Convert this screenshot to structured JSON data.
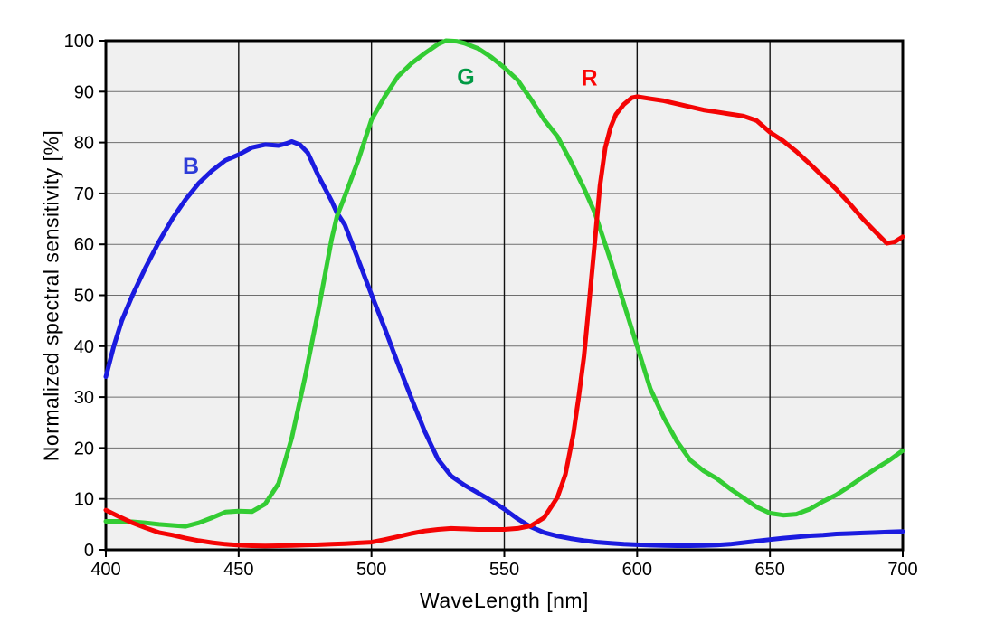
{
  "chart_data": {
    "type": "line",
    "title": "",
    "xlabel": "WaveLength [nm]",
    "ylabel": "Normalized spectral sensitivity [%]",
    "xlim": [
      400,
      700
    ],
    "ylim": [
      0,
      100
    ],
    "x_ticks": [
      400,
      450,
      500,
      550,
      600,
      650,
      700
    ],
    "y_ticks": [
      0,
      10,
      20,
      30,
      40,
      50,
      60,
      70,
      80,
      90,
      100
    ],
    "grid": true,
    "legend_position": "inline-labels",
    "style": {
      "plot_bg": "#f0f0f0",
      "grid_h_color": "#6e6e6e",
      "grid_v_color": "#111111",
      "border_color": "#000000",
      "tick_color": "#000000",
      "tick_label_size": 20,
      "curve_width": 5
    },
    "series": [
      {
        "name": "B",
        "color": "#1b1bdf",
        "label": {
          "text": "B",
          "x": 432,
          "y": 75.5,
          "color": "#2c3bd8"
        },
        "points": [
          [
            400,
            34
          ],
          [
            403,
            40
          ],
          [
            406,
            45
          ],
          [
            410,
            50
          ],
          [
            415,
            55.5
          ],
          [
            420,
            60.5
          ],
          [
            425,
            65
          ],
          [
            430,
            68.8
          ],
          [
            435,
            72
          ],
          [
            440,
            74.5
          ],
          [
            445,
            76.5
          ],
          [
            450,
            77.6
          ],
          [
            455,
            79
          ],
          [
            460,
            79.6
          ],
          [
            465,
            79.4
          ],
          [
            468,
            79.8
          ],
          [
            470,
            80.2
          ],
          [
            473,
            79.6
          ],
          [
            476,
            78
          ],
          [
            480,
            73.5
          ],
          [
            485,
            68.5
          ],
          [
            487,
            66.2
          ],
          [
            490,
            63.8
          ],
          [
            495,
            57
          ],
          [
            500,
            50.1
          ],
          [
            505,
            43.5
          ],
          [
            510,
            36.5
          ],
          [
            515,
            29.8
          ],
          [
            520,
            23.3
          ],
          [
            525,
            17.8
          ],
          [
            530,
            14.5
          ],
          [
            535,
            12.7
          ],
          [
            540,
            11.2
          ],
          [
            545,
            9.7
          ],
          [
            550,
            8
          ],
          [
            555,
            6.1
          ],
          [
            560,
            4.5
          ],
          [
            565,
            3.4
          ],
          [
            570,
            2.7
          ],
          [
            575,
            2.2
          ],
          [
            580,
            1.8
          ],
          [
            585,
            1.5
          ],
          [
            590,
            1.3
          ],
          [
            595,
            1.1
          ],
          [
            600,
            1
          ],
          [
            605,
            0.9
          ],
          [
            610,
            0.85
          ],
          [
            615,
            0.8
          ],
          [
            620,
            0.8
          ],
          [
            625,
            0.85
          ],
          [
            630,
            0.95
          ],
          [
            635,
            1.1
          ],
          [
            640,
            1.4
          ],
          [
            645,
            1.7
          ],
          [
            650,
            2
          ],
          [
            655,
            2.3
          ],
          [
            660,
            2.5
          ],
          [
            665,
            2.75
          ],
          [
            670,
            2.9
          ],
          [
            675,
            3.1
          ],
          [
            680,
            3.2
          ],
          [
            685,
            3.3
          ],
          [
            690,
            3.4
          ],
          [
            695,
            3.5
          ],
          [
            700,
            3.6
          ]
        ]
      },
      {
        "name": "G",
        "color": "#33cc33",
        "label": {
          "text": "G",
          "x": 535.5,
          "y": 93,
          "color": "#009a44"
        },
        "points": [
          [
            400,
            5.6
          ],
          [
            405,
            5.6
          ],
          [
            410,
            5.5
          ],
          [
            415,
            5.3
          ],
          [
            420,
            5
          ],
          [
            425,
            4.8
          ],
          [
            430,
            4.6
          ],
          [
            435,
            5.3
          ],
          [
            440,
            6.3
          ],
          [
            445,
            7.4
          ],
          [
            450,
            7.6
          ],
          [
            455,
            7.5
          ],
          [
            460,
            9
          ],
          [
            465,
            13
          ],
          [
            470,
            22
          ],
          [
            475,
            34
          ],
          [
            480,
            47
          ],
          [
            485,
            61
          ],
          [
            487,
            65.5
          ],
          [
            490,
            69.5
          ],
          [
            495,
            76.5
          ],
          [
            500,
            84.5
          ],
          [
            505,
            89
          ],
          [
            510,
            93
          ],
          [
            515,
            95.5
          ],
          [
            520,
            97.5
          ],
          [
            525,
            99.3
          ],
          [
            528,
            100
          ],
          [
            532,
            99.9
          ],
          [
            535,
            99.5
          ],
          [
            540,
            98.5
          ],
          [
            545,
            96.8
          ],
          [
            550,
            94.7
          ],
          [
            555,
            92.3
          ],
          [
            558,
            90
          ],
          [
            560,
            88.5
          ],
          [
            565,
            84.5
          ],
          [
            570,
            81.2
          ],
          [
            575,
            76.3
          ],
          [
            580,
            71
          ],
          [
            584,
            66.3
          ],
          [
            588,
            60
          ],
          [
            590,
            56.8
          ],
          [
            595,
            48.4
          ],
          [
            600,
            40
          ],
          [
            605,
            31.6
          ],
          [
            610,
            26
          ],
          [
            615,
            21.3
          ],
          [
            620,
            17.6
          ],
          [
            625,
            15.5
          ],
          [
            630,
            14
          ],
          [
            635,
            12
          ],
          [
            640,
            10.2
          ],
          [
            645,
            8.4
          ],
          [
            650,
            7.2
          ],
          [
            655,
            6.8
          ],
          [
            660,
            7
          ],
          [
            665,
            8
          ],
          [
            670,
            9.5
          ],
          [
            675,
            10.8
          ],
          [
            680,
            12.5
          ],
          [
            685,
            14.3
          ],
          [
            690,
            16
          ],
          [
            695,
            17.6
          ],
          [
            700,
            19.5
          ]
        ]
      },
      {
        "name": "R",
        "color": "#f40404",
        "label": {
          "text": "R",
          "x": 582,
          "y": 92.8,
          "color": "#fb0404"
        },
        "points": [
          [
            400,
            7.8
          ],
          [
            405,
            6.5
          ],
          [
            410,
            5.3
          ],
          [
            415,
            4.3
          ],
          [
            420,
            3.4
          ],
          [
            425,
            2.9
          ],
          [
            430,
            2.3
          ],
          [
            435,
            1.8
          ],
          [
            440,
            1.4
          ],
          [
            445,
            1.1
          ],
          [
            450,
            0.9
          ],
          [
            455,
            0.8
          ],
          [
            460,
            0.75
          ],
          [
            465,
            0.8
          ],
          [
            470,
            0.85
          ],
          [
            475,
            0.95
          ],
          [
            480,
            1
          ],
          [
            485,
            1.1
          ],
          [
            490,
            1.2
          ],
          [
            495,
            1.35
          ],
          [
            500,
            1.5
          ],
          [
            505,
            2
          ],
          [
            510,
            2.6
          ],
          [
            515,
            3.2
          ],
          [
            520,
            3.7
          ],
          [
            525,
            4
          ],
          [
            530,
            4.2
          ],
          [
            535,
            4.1
          ],
          [
            540,
            4
          ],
          [
            545,
            4
          ],
          [
            550,
            4
          ],
          [
            555,
            4.2
          ],
          [
            560,
            4.7
          ],
          [
            565,
            6.3
          ],
          [
            570,
            10.3
          ],
          [
            573,
            14.8
          ],
          [
            576,
            22.8
          ],
          [
            578,
            30
          ],
          [
            580,
            38
          ],
          [
            582,
            49
          ],
          [
            584,
            60
          ],
          [
            586,
            71.5
          ],
          [
            588,
            79
          ],
          [
            590,
            83
          ],
          [
            592,
            85.5
          ],
          [
            595,
            87.5
          ],
          [
            598,
            88.8
          ],
          [
            600,
            89
          ],
          [
            605,
            88.6
          ],
          [
            610,
            88.2
          ],
          [
            615,
            87.6
          ],
          [
            620,
            87
          ],
          [
            625,
            86.4
          ],
          [
            630,
            86
          ],
          [
            635,
            85.6
          ],
          [
            640,
            85.2
          ],
          [
            645,
            84.3
          ],
          [
            650,
            82
          ],
          [
            655,
            80.3
          ],
          [
            660,
            78.2
          ],
          [
            665,
            75.8
          ],
          [
            670,
            73.3
          ],
          [
            675,
            70.8
          ],
          [
            680,
            68
          ],
          [
            685,
            65
          ],
          [
            690,
            62.3
          ],
          [
            694,
            60.2
          ],
          [
            697,
            60.5
          ],
          [
            700,
            61.5
          ]
        ]
      }
    ]
  }
}
